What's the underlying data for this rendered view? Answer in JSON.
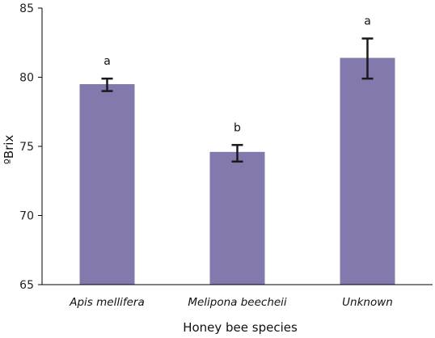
{
  "chart_data": {
    "type": "bar",
    "categories": [
      "Apis mellifera",
      "Melipona beecheii",
      "Unknown"
    ],
    "category_style": [
      "italic",
      "italic",
      "italic"
    ],
    "values": [
      79.5,
      74.6,
      81.4
    ],
    "error_low": [
      79.0,
      73.9,
      79.9
    ],
    "error_high": [
      79.9,
      75.1,
      82.8
    ],
    "significance_letters": [
      "a",
      "b",
      "a"
    ],
    "xlabel": "Honey bee species",
    "ylabel": "ºBrix",
    "ylim": [
      65,
      85
    ],
    "yticks": [
      "65",
      "70",
      "75",
      "80",
      "85"
    ],
    "grid": false,
    "bar_color": "#8479ac",
    "error_bar_color": "#1a1a1a"
  }
}
